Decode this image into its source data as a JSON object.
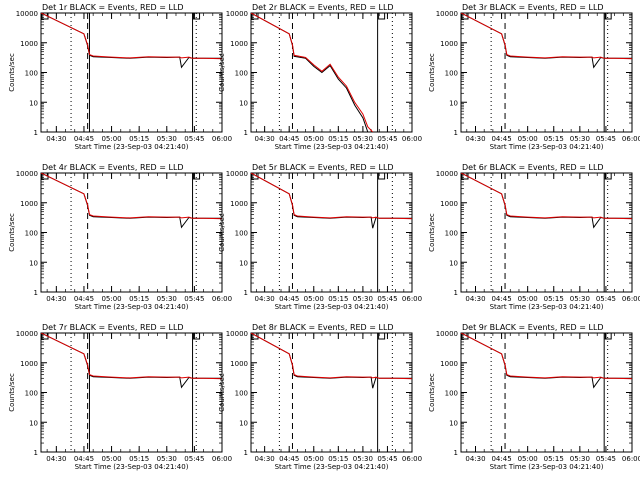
{
  "chart_data": [
    {
      "type": "line",
      "title": "Det 1r BLACK = Events, RED = LLD",
      "xlabel": "Start Time (23-Sep-03 04:21:40)",
      "ylabel": "Counts/sec",
      "yscale": "log",
      "ylim": [
        1,
        10000
      ],
      "xlim": [
        "04:21:40",
        "06:00:00"
      ],
      "x_ticks": [
        "04:30",
        "04:45",
        "05:00",
        "05:15",
        "05:30",
        "05:45",
        "06:00"
      ],
      "y_ticks": [
        "1",
        "10",
        "100",
        "1000",
        "10000"
      ],
      "vlines": {
        "dotted": [
          "04:38",
          "05:46"
        ],
        "dashed": [
          "04:47"
        ],
        "solid": [
          "04:48",
          "05:44"
        ]
      },
      "x": [
        "04:21:40",
        "04:45:00",
        "04:47:00",
        "04:48:00",
        "04:50:00",
        "05:00:00",
        "05:10:00",
        "05:20:00",
        "05:30:00",
        "05:37:00",
        "05:38:00",
        "05:42:00",
        "05:44:00",
        "05:50:00",
        "06:00:00"
      ],
      "series": [
        {
          "name": "Events",
          "color": "#000000",
          "values": [
            10000,
            2000,
            800,
            380,
            340,
            320,
            300,
            330,
            320,
            330,
            150,
            320,
            300,
            300,
            300
          ]
        },
        {
          "name": "LLD",
          "color": "#e00000",
          "values": [
            10000,
            2000,
            850,
            400,
            360,
            330,
            310,
            340,
            330,
            330,
            310,
            330,
            300,
            300,
            290
          ]
        }
      ]
    },
    {
      "type": "line",
      "title": "Det 2r BLACK = Events, RED = LLD",
      "xlabel": "Start Time (23-Sep-03 04:21:40)",
      "ylabel": "Counts/sec",
      "yscale": "log",
      "ylim": [
        1,
        10000
      ],
      "xlim": [
        "04:21:40",
        "06:00:00"
      ],
      "x_ticks": [
        "04:30",
        "04:45",
        "05:00",
        "05:15",
        "05:30",
        "05:45",
        "06:00"
      ],
      "y_ticks": [
        "1",
        "10",
        "100",
        "1000",
        "10000"
      ],
      "vlines": {
        "dotted": [
          "04:39",
          "05:48"
        ],
        "dashed": [
          "04:47"
        ],
        "solid": [
          "05:39"
        ]
      },
      "x": [
        "04:21:40",
        "04:45:00",
        "04:47:00",
        "04:48:00",
        "04:55:00",
        "05:00:00",
        "05:05:00",
        "05:10:00",
        "05:15:00",
        "05:20:00",
        "05:25:00",
        "05:30:00",
        "05:33:00",
        "05:36:00"
      ],
      "series": [
        {
          "name": "Events",
          "color": "#000000",
          "values": [
            10000,
            2000,
            800,
            350,
            300,
            160,
            100,
            170,
            60,
            30,
            8,
            3,
            1,
            1
          ]
        },
        {
          "name": "LLD",
          "color": "#e00000",
          "values": [
            10000,
            2000,
            850,
            380,
            320,
            180,
            110,
            190,
            70,
            35,
            10,
            4,
            1.5,
            1
          ]
        }
      ]
    },
    {
      "type": "line",
      "title": "Det 3r BLACK = Events, RED = LLD",
      "xlabel": "Start Time (23-Sep-03 04:21:40)",
      "ylabel": "Counts/sec",
      "yscale": "log",
      "ylim": [
        1,
        10000
      ],
      "xlim": [
        "04:21:40",
        "06:00:00"
      ],
      "x_ticks": [
        "04:30",
        "04:45",
        "05:00",
        "05:15",
        "05:30",
        "05:45",
        "06:00"
      ],
      "y_ticks": [
        "1",
        "10",
        "100",
        "1000",
        "10000"
      ],
      "vlines": {
        "dotted": [
          "04:39",
          "05:46"
        ],
        "dashed": [
          "04:47"
        ],
        "solid": [
          "05:44"
        ]
      },
      "x": [
        "04:21:40",
        "04:45:00",
        "04:47:00",
        "04:48:00",
        "04:50:00",
        "05:00:00",
        "05:10:00",
        "05:20:00",
        "05:30:00",
        "05:37:00",
        "05:38:00",
        "05:42:00",
        "05:44:00",
        "05:50:00",
        "06:00:00"
      ],
      "series": [
        {
          "name": "Events",
          "color": "#000000",
          "values": [
            10000,
            2000,
            800,
            380,
            340,
            320,
            300,
            330,
            320,
            330,
            150,
            320,
            300,
            300,
            300
          ]
        },
        {
          "name": "LLD",
          "color": "#e00000",
          "values": [
            10000,
            2000,
            850,
            400,
            360,
            330,
            310,
            340,
            330,
            330,
            310,
            330,
            300,
            300,
            290
          ]
        }
      ]
    },
    {
      "type": "line",
      "title": "Det 4r BLACK = Events, RED = LLD",
      "xlabel": "Start Time (23-Sep-03 04:21:40)",
      "ylabel": "Counts/sec",
      "yscale": "log",
      "ylim": [
        1,
        10000
      ],
      "xlim": [
        "04:21:40",
        "06:00:00"
      ],
      "x_ticks": [
        "04:30",
        "04:45",
        "05:00",
        "05:15",
        "05:30",
        "05:45",
        "06:00"
      ],
      "y_ticks": [
        "1",
        "10",
        "100",
        "1000",
        "10000"
      ],
      "vlines": {
        "dotted": [
          "04:38",
          "05:46"
        ],
        "dashed": [
          "04:47"
        ],
        "solid": [
          "05:44"
        ]
      },
      "x": [
        "04:21:40",
        "04:45:00",
        "04:47:00",
        "04:48:00",
        "04:50:00",
        "05:00:00",
        "05:10:00",
        "05:20:00",
        "05:30:00",
        "05:37:00",
        "05:38:00",
        "05:42:00",
        "05:44:00",
        "05:50:00",
        "06:00:00"
      ],
      "series": [
        {
          "name": "Events",
          "color": "#000000",
          "values": [
            10000,
            2000,
            800,
            380,
            340,
            320,
            300,
            330,
            320,
            330,
            150,
            320,
            300,
            300,
            300
          ]
        },
        {
          "name": "LLD",
          "color": "#e00000",
          "values": [
            10000,
            2000,
            850,
            400,
            360,
            330,
            310,
            340,
            330,
            330,
            310,
            330,
            300,
            300,
            290
          ]
        }
      ]
    },
    {
      "type": "line",
      "title": "Det 5r BLACK = Events, RED = LLD",
      "xlabel": "Start Time (23-Sep-03 04:21:40)",
      "ylabel": "Counts/sec",
      "yscale": "log",
      "ylim": [
        1,
        10000
      ],
      "xlim": [
        "04:21:40",
        "06:00:00"
      ],
      "x_ticks": [
        "04:30",
        "04:45",
        "05:00",
        "05:15",
        "05:30",
        "05:45",
        "06:00"
      ],
      "y_ticks": [
        "1",
        "10",
        "100",
        "1000",
        "10000"
      ],
      "vlines": {
        "dotted": [
          "04:39",
          "05:48"
        ],
        "dashed": [
          "04:47"
        ],
        "solid": [
          "05:39"
        ]
      },
      "x": [
        "04:21:40",
        "04:45:00",
        "04:47:00",
        "04:48:00",
        "04:50:00",
        "05:00:00",
        "05:10:00",
        "05:20:00",
        "05:30:00",
        "05:35:00",
        "05:36:00",
        "05:38:00",
        "05:40:00",
        "05:50:00",
        "06:00:00"
      ],
      "series": [
        {
          "name": "Events",
          "color": "#000000",
          "values": [
            10000,
            2000,
            800,
            380,
            340,
            320,
            300,
            330,
            320,
            330,
            140,
            320,
            300,
            300,
            300
          ]
        },
        {
          "name": "LLD",
          "color": "#e00000",
          "values": [
            10000,
            2000,
            850,
            400,
            360,
            330,
            310,
            340,
            330,
            330,
            310,
            330,
            300,
            300,
            290
          ]
        }
      ]
    },
    {
      "type": "line",
      "title": "Det 6r BLACK = Events, RED = LLD",
      "xlabel": "Start Time (23-Sep-03 04:21:40)",
      "ylabel": "Counts/sec",
      "yscale": "log",
      "ylim": [
        1,
        10000
      ],
      "xlim": [
        "04:21:40",
        "06:00:00"
      ],
      "x_ticks": [
        "04:30",
        "04:45",
        "05:00",
        "05:15",
        "05:30",
        "05:45",
        "06:00"
      ],
      "y_ticks": [
        "1",
        "10",
        "100",
        "1000",
        "10000"
      ],
      "vlines": {
        "dotted": [
          "04:39",
          "05:46"
        ],
        "dashed": [
          "04:47"
        ],
        "solid": [
          "05:44"
        ]
      },
      "x": [
        "04:21:40",
        "04:45:00",
        "04:47:00",
        "04:48:00",
        "04:50:00",
        "05:00:00",
        "05:10:00",
        "05:20:00",
        "05:30:00",
        "05:37:00",
        "05:38:00",
        "05:42:00",
        "05:44:00",
        "05:50:00",
        "06:00:00"
      ],
      "series": [
        {
          "name": "Events",
          "color": "#000000",
          "values": [
            10000,
            2000,
            800,
            380,
            340,
            320,
            300,
            330,
            320,
            330,
            150,
            320,
            300,
            300,
            300
          ]
        },
        {
          "name": "LLD",
          "color": "#e00000",
          "values": [
            10000,
            2000,
            850,
            400,
            360,
            330,
            310,
            340,
            330,
            330,
            310,
            330,
            300,
            300,
            290
          ]
        }
      ]
    },
    {
      "type": "line",
      "title": "Det 7r BLACK = Events, RED = LLD",
      "xlabel": "Start Time (23-Sep-03 04:21:40)",
      "ylabel": "Counts/sec",
      "yscale": "log",
      "ylim": [
        1,
        10000
      ],
      "xlim": [
        "04:21:40",
        "06:00:00"
      ],
      "x_ticks": [
        "04:30",
        "04:45",
        "05:00",
        "05:15",
        "05:30",
        "05:45",
        "06:00"
      ],
      "y_ticks": [
        "1",
        "10",
        "100",
        "1000",
        "10000"
      ],
      "vlines": {
        "dotted": [
          "04:38",
          "05:46"
        ],
        "dashed": [
          "04:47"
        ],
        "solid": [
          "04:48",
          "05:44"
        ]
      },
      "x": [
        "04:21:40",
        "04:45:00",
        "04:47:00",
        "04:48:00",
        "04:50:00",
        "05:00:00",
        "05:10:00",
        "05:20:00",
        "05:30:00",
        "05:37:00",
        "05:38:00",
        "05:42:00",
        "05:44:00",
        "05:50:00",
        "06:00:00"
      ],
      "series": [
        {
          "name": "Events",
          "color": "#000000",
          "values": [
            10000,
            2000,
            800,
            380,
            340,
            320,
            300,
            330,
            320,
            330,
            150,
            320,
            300,
            300,
            300
          ]
        },
        {
          "name": "LLD",
          "color": "#e00000",
          "values": [
            10000,
            2000,
            850,
            400,
            360,
            330,
            310,
            340,
            330,
            330,
            310,
            330,
            300,
            300,
            290
          ]
        }
      ]
    },
    {
      "type": "line",
      "title": "Det 8r BLACK = Events, RED = LLD",
      "xlabel": "Start Time (23-Sep-03 04:21:40)",
      "ylabel": "Counts/sec",
      "yscale": "log",
      "ylim": [
        1,
        10000
      ],
      "xlim": [
        "04:21:40",
        "06:00:00"
      ],
      "x_ticks": [
        "04:30",
        "04:45",
        "05:00",
        "05:15",
        "05:30",
        "05:45",
        "06:00"
      ],
      "y_ticks": [
        "1",
        "10",
        "100",
        "1000",
        "10000"
      ],
      "vlines": {
        "dotted": [
          "04:39",
          "05:48"
        ],
        "dashed": [
          "04:47"
        ],
        "solid": [
          "05:39"
        ]
      },
      "x": [
        "04:21:40",
        "04:45:00",
        "04:47:00",
        "04:48:00",
        "04:50:00",
        "05:00:00",
        "05:10:00",
        "05:20:00",
        "05:30:00",
        "05:35:00",
        "05:36:00",
        "05:38:00",
        "05:40:00",
        "05:50:00",
        "06:00:00"
      ],
      "series": [
        {
          "name": "Events",
          "color": "#000000",
          "values": [
            10000,
            2000,
            800,
            380,
            340,
            320,
            300,
            330,
            320,
            330,
            140,
            320,
            300,
            300,
            300
          ]
        },
        {
          "name": "LLD",
          "color": "#e00000",
          "values": [
            10000,
            2000,
            850,
            400,
            360,
            330,
            310,
            340,
            330,
            330,
            310,
            330,
            300,
            300,
            290
          ]
        }
      ]
    },
    {
      "type": "line",
      "title": "Det 9r BLACK = Events, RED = LLD",
      "xlabel": "Start Time (23-Sep-03 04:21:40)",
      "ylabel": "Counts/sec",
      "yscale": "log",
      "ylim": [
        1,
        10000
      ],
      "xlim": [
        "04:21:40",
        "06:00:00"
      ],
      "x_ticks": [
        "04:30",
        "04:45",
        "05:00",
        "05:15",
        "05:30",
        "05:45",
        "06:00"
      ],
      "y_ticks": [
        "1",
        "10",
        "100",
        "1000",
        "10000"
      ],
      "vlines": {
        "dotted": [
          "04:39",
          "05:46"
        ],
        "dashed": [
          "04:47"
        ],
        "solid": [
          "05:44"
        ]
      },
      "x": [
        "04:21:40",
        "04:45:00",
        "04:47:00",
        "04:48:00",
        "04:50:00",
        "05:00:00",
        "05:10:00",
        "05:20:00",
        "05:30:00",
        "05:37:00",
        "05:38:00",
        "05:42:00",
        "05:44:00",
        "05:50:00",
        "06:00:00"
      ],
      "series": [
        {
          "name": "Events",
          "color": "#000000",
          "values": [
            10000,
            2000,
            800,
            380,
            340,
            320,
            300,
            330,
            320,
            330,
            150,
            320,
            300,
            300,
            300
          ]
        },
        {
          "name": "LLD",
          "color": "#e00000",
          "values": [
            10000,
            2000,
            850,
            400,
            360,
            330,
            310,
            340,
            330,
            330,
            310,
            330,
            300,
            300,
            290
          ]
        }
      ]
    }
  ]
}
